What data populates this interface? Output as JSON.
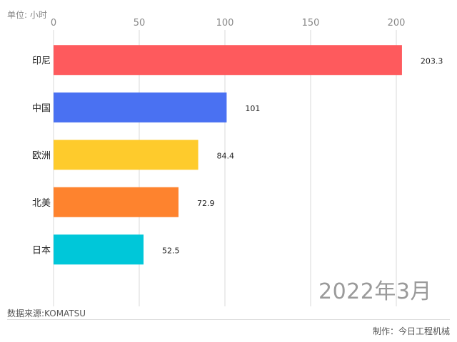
{
  "unit_label": "单位: 小时",
  "period_label": "2022年3月",
  "source_label": "数据来源:KOMATSU",
  "credit_label": "制作：今日工程机械",
  "chart_data": {
    "type": "bar",
    "orientation": "horizontal",
    "categories": [
      "印尼",
      "中国",
      "欧洲",
      "北美",
      "日本"
    ],
    "values": [
      203.3,
      101,
      84.4,
      72.9,
      52.5
    ],
    "value_labels": [
      "203.3",
      "101",
      "84.4",
      "72.9",
      "52.5"
    ],
    "colors": [
      "#fe5a5d",
      "#4a71f2",
      "#fecb2c",
      "#fe832e",
      "#00c7d9"
    ],
    "xlim": [
      0,
      230
    ],
    "xticks": [
      0,
      50,
      100,
      150,
      200
    ],
    "xtick_position": "top",
    "grid": true
  }
}
